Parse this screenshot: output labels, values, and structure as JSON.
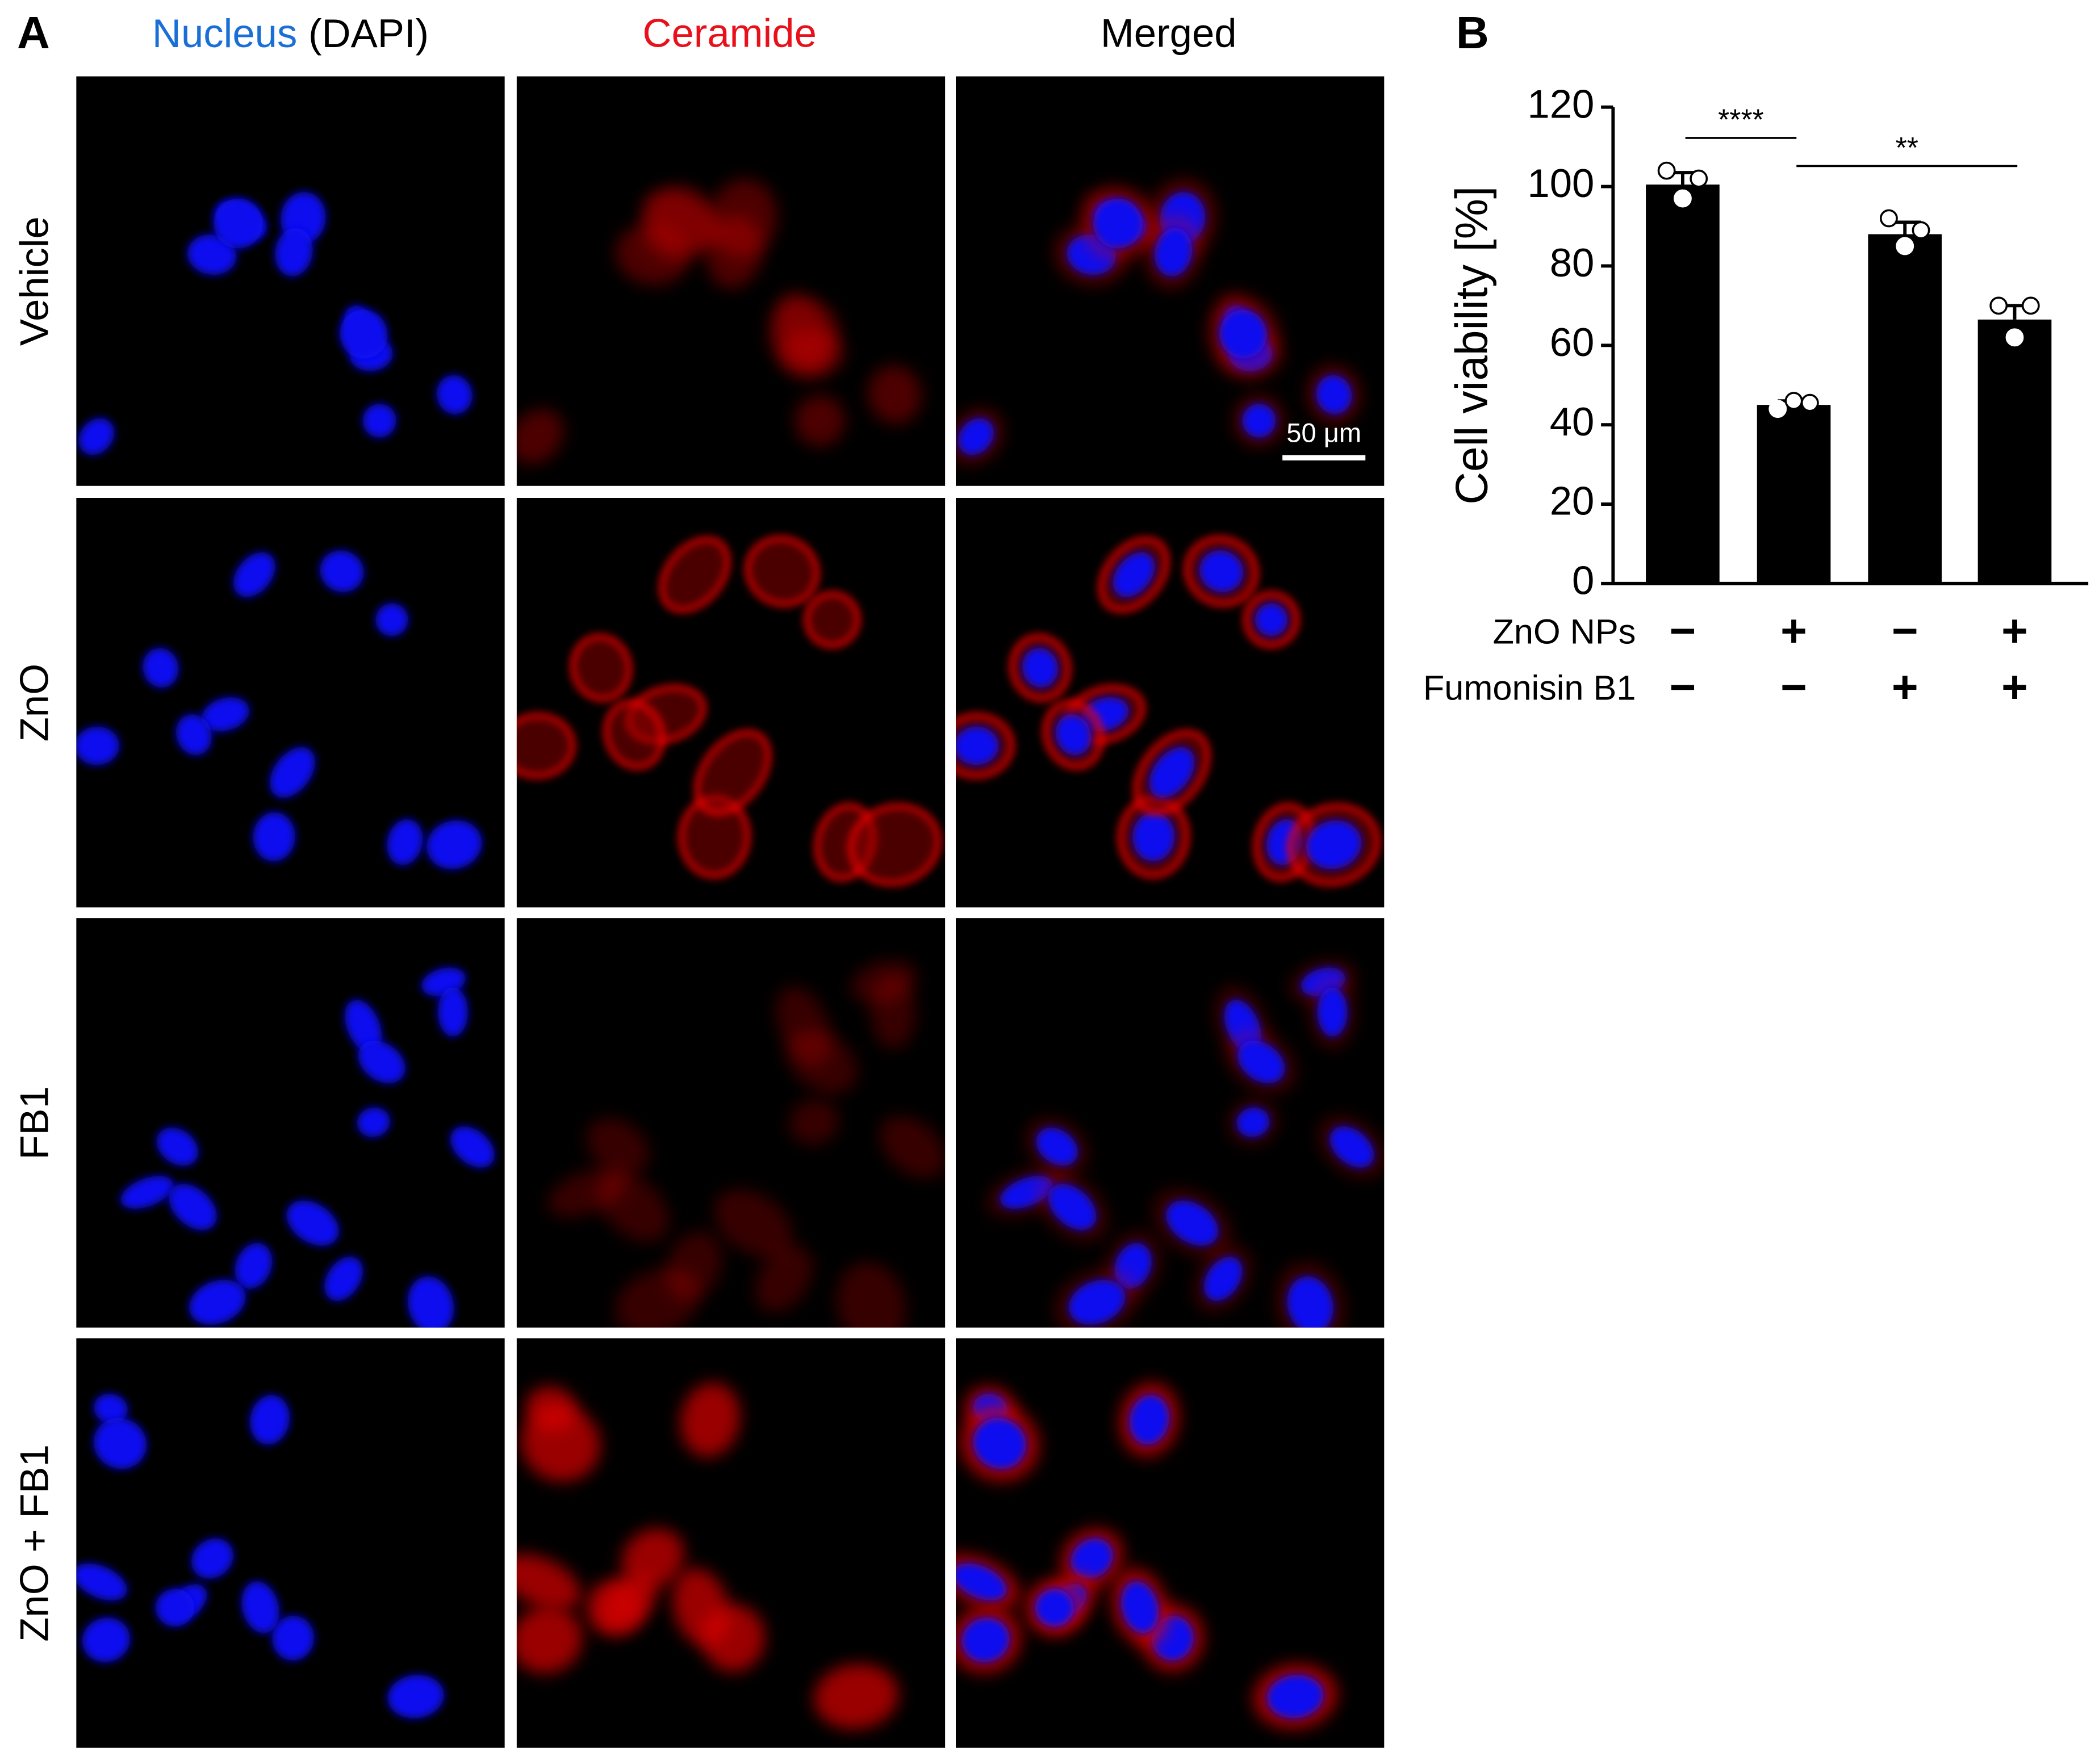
{
  "panel_a": {
    "label": "A",
    "columns": [
      {
        "title": "Nucleus",
        "subtitle": "(DAPI)"
      },
      {
        "title": "Ceramide"
      },
      {
        "title": "Merged"
      }
    ],
    "rows": [
      "Vehicle",
      "ZnO",
      "FB1",
      "ZnO + FB1"
    ],
    "scale_bar": "50 μm"
  },
  "chart_data": {
    "type": "bar",
    "label": "B",
    "ylabel": "Cell viability [%]",
    "categories": [
      null,
      null,
      null,
      null
    ],
    "values": [
      100.5,
      45,
      88,
      66.5
    ],
    "errors": [
      3,
      1,
      3,
      3.5
    ],
    "points": [
      [
        104,
        97,
        102
      ],
      [
        44,
        46,
        45.5
      ],
      [
        92,
        85,
        89
      ],
      [
        70,
        62,
        70
      ]
    ],
    "color": "#000000",
    "ylim": [
      0,
      120
    ],
    "yticks": [
      0,
      20,
      40,
      60,
      80,
      100,
      120
    ],
    "conditions": [
      {
        "name": "ZnO NPs",
        "signs": [
          "−",
          "+",
          "−",
          "+"
        ]
      },
      {
        "name": "Fumonisin B1",
        "signs": [
          "−",
          "−",
          "+",
          "+"
        ]
      }
    ],
    "significance": [
      {
        "label": "****",
        "from": 0,
        "to": 1
      },
      {
        "label": "**",
        "from": 1,
        "to": 3
      }
    ]
  }
}
